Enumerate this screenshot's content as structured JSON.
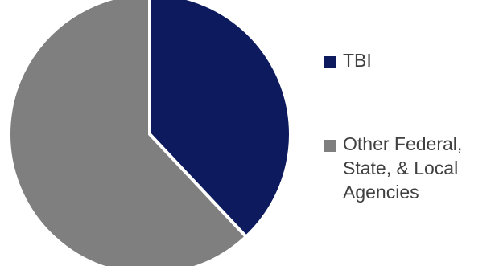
{
  "chart_data": {
    "type": "pie",
    "title": "",
    "slices": [
      {
        "label": "TBI",
        "value": 38,
        "color": "#0d1b5e"
      },
      {
        "label": "Other Federal,\nState, & Local\nAgencies",
        "value": 62,
        "color": "#7f7f7f"
      }
    ],
    "legend_position": "right",
    "start_angle_deg": 0,
    "direction": "clockwise",
    "separator_color": "#ffffff"
  }
}
